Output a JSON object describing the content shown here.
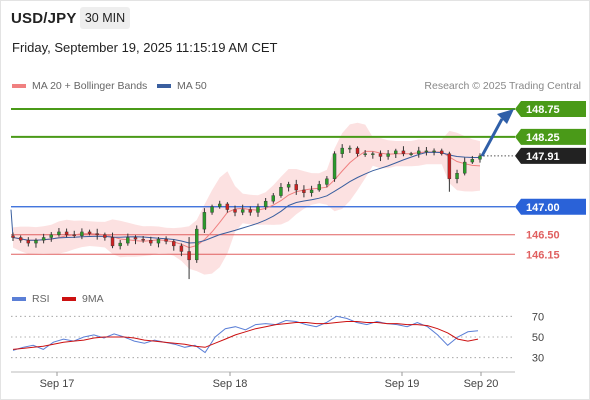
{
  "header": {
    "pair": "USD/JPY",
    "timeframe": "30 MIN",
    "timestamp": "Friday, September 19, 2025 11:15:19 AM CET",
    "copyright": "Research © 2025 Trading Central"
  },
  "legend": {
    "ma20_label": "MA 20 + Bollinger Bands",
    "ma50_label": "MA 50",
    "rsi_label": "RSI",
    "ma9_label": "9MA"
  },
  "colors": {
    "ma20": "#f08080",
    "ma50": "#3a5f9f",
    "bollinger_fill": "#fbdcdc",
    "resistance": "#4a9a18",
    "support_blue": "#2a62d8",
    "support_red": "#e06060",
    "current_price_tag": "#222222",
    "rsi": "#5b7fd6",
    "ma9": "#cc1111",
    "arrow": "#2f5fa8",
    "candle_up": "#2b9a2b",
    "candle_down": "#cc2222"
  },
  "chart_data": [
    {
      "type": "candlestick",
      "title": "USD/JPY",
      "timeframe": "30 MIN",
      "x_ticks": [
        "Sep 17",
        "Sep 18",
        "Sep 19",
        "Sep 20"
      ],
      "price_range": [
        145.6,
        149.0
      ],
      "levels": [
        {
          "value": 148.75,
          "label": "148.75",
          "kind": "resistance",
          "color": "#4a9a18"
        },
        {
          "value": 148.25,
          "label": "148.25",
          "kind": "resistance",
          "color": "#4a9a18"
        },
        {
          "value": 147.91,
          "label": "147.91",
          "kind": "current",
          "color": "#222222"
        },
        {
          "value": 147.0,
          "label": "147.00",
          "kind": "pivot",
          "color": "#2a62d8"
        },
        {
          "value": 146.5,
          "label": "146.50",
          "kind": "support",
          "color": "#e06060"
        },
        {
          "value": 146.15,
          "label": "146.15",
          "kind": "support",
          "color": "#e06060"
        }
      ],
      "close_path": [
        146.45,
        146.4,
        146.35,
        146.4,
        146.45,
        146.5,
        146.55,
        146.5,
        146.48,
        146.55,
        146.52,
        146.5,
        146.45,
        146.3,
        146.35,
        146.45,
        146.42,
        146.4,
        146.35,
        146.42,
        146.38,
        146.3,
        146.2,
        146.05,
        146.6,
        146.9,
        147.0,
        147.05,
        146.95,
        146.9,
        146.95,
        146.9,
        147.0,
        147.1,
        147.2,
        147.35,
        147.4,
        147.3,
        147.25,
        147.3,
        147.4,
        147.5,
        147.95,
        148.05,
        148.05,
        147.95,
        147.95,
        147.95,
        147.9,
        147.95,
        148.0,
        147.95,
        147.95,
        148.0,
        148.0,
        148.0,
        147.95,
        147.5,
        147.6,
        147.8,
        147.85,
        147.91
      ],
      "forecast_arrow": {
        "from": 147.91,
        "to": 148.75
      }
    },
    {
      "type": "line",
      "title": "RSI",
      "ylim": [
        20,
        80
      ],
      "y_ticks": [
        70,
        50,
        30
      ],
      "series": [
        {
          "name": "RSI",
          "values": [
            37,
            40,
            42,
            38,
            45,
            48,
            46,
            50,
            52,
            49,
            53,
            50,
            46,
            44,
            47,
            45,
            43,
            40,
            42,
            35,
            50,
            58,
            60,
            57,
            62,
            63,
            62,
            66,
            65,
            62,
            60,
            64,
            70,
            68,
            64,
            62,
            65,
            63,
            62,
            60,
            64,
            60,
            52,
            42,
            50,
            55,
            56
          ]
        },
        {
          "name": "9MA",
          "values": [
            38,
            39,
            40,
            41,
            43,
            45,
            46,
            47,
            49,
            50,
            50,
            50,
            49,
            47,
            46,
            45,
            44,
            43,
            41,
            40,
            44,
            48,
            52,
            55,
            58,
            60,
            62,
            63,
            64,
            64,
            63,
            63,
            64,
            65,
            65,
            64,
            64,
            63,
            63,
            62,
            62,
            61,
            58,
            54,
            48,
            46,
            48
          ]
        }
      ]
    }
  ]
}
